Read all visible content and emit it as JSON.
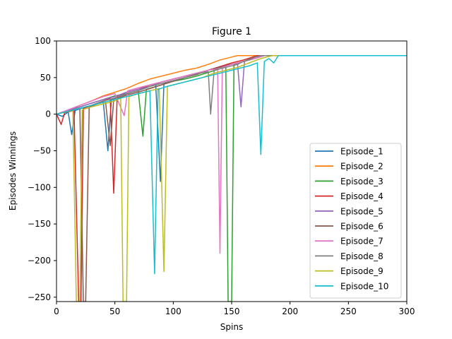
{
  "chart_data": {
    "type": "line",
    "title": "Figure 1",
    "xlabel": "Spins",
    "ylabel": "Episodes Winnings",
    "xlim": [
      0,
      300
    ],
    "ylim": [
      -256,
      100
    ],
    "xticks": [
      0,
      50,
      100,
      150,
      200,
      250,
      300
    ],
    "yticks": [
      -250,
      -200,
      -150,
      -100,
      -50,
      0,
      50,
      100
    ],
    "grid": false,
    "legend": "lower-right",
    "series": [
      {
        "name": "Episode_1",
        "color": "#1f77b4",
        "points": [
          [
            0,
            0
          ],
          [
            5,
            -3
          ],
          [
            10,
            3
          ],
          [
            13,
            -28
          ],
          [
            16,
            5
          ],
          [
            25,
            10
          ],
          [
            30,
            12
          ],
          [
            35,
            15
          ],
          [
            40,
            18
          ],
          [
            44,
            -50
          ],
          [
            47,
            20
          ],
          [
            55,
            25
          ],
          [
            65,
            30
          ],
          [
            70,
            32
          ],
          [
            75,
            35
          ],
          [
            80,
            38
          ],
          [
            85,
            40
          ],
          [
            89,
            -92
          ],
          [
            92,
            42
          ],
          [
            100,
            45
          ],
          [
            110,
            50
          ],
          [
            120,
            55
          ],
          [
            130,
            60
          ],
          [
            140,
            65
          ],
          [
            150,
            68
          ],
          [
            155,
            70
          ],
          [
            160,
            72
          ],
          [
            165,
            75
          ],
          [
            170,
            78
          ],
          [
            175,
            80
          ],
          [
            300,
            80
          ]
        ]
      },
      {
        "name": "Episode_2",
        "color": "#ff7f0e",
        "points": [
          [
            0,
            0
          ],
          [
            10,
            5
          ],
          [
            20,
            12
          ],
          [
            30,
            18
          ],
          [
            40,
            25
          ],
          [
            50,
            30
          ],
          [
            60,
            35
          ],
          [
            70,
            42
          ],
          [
            80,
            48
          ],
          [
            90,
            52
          ],
          [
            100,
            56
          ],
          [
            110,
            60
          ],
          [
            120,
            63
          ],
          [
            130,
            68
          ],
          [
            140,
            74
          ],
          [
            150,
            78
          ],
          [
            155,
            80
          ],
          [
            300,
            80
          ]
        ]
      },
      {
        "name": "Episode_3",
        "color": "#2ca02c",
        "points": [
          [
            0,
            0
          ],
          [
            10,
            5
          ],
          [
            20,
            10
          ],
          [
            30,
            15
          ],
          [
            40,
            20
          ],
          [
            50,
            25
          ],
          [
            60,
            28
          ],
          [
            70,
            32
          ],
          [
            74,
            -30
          ],
          [
            77,
            34
          ],
          [
            90,
            40
          ],
          [
            100,
            45
          ],
          [
            110,
            48
          ],
          [
            120,
            52
          ],
          [
            130,
            57
          ],
          [
            140,
            62
          ],
          [
            145,
            65
          ],
          [
            147,
            -256
          ],
          [
            150,
            -256
          ],
          [
            152,
            68
          ],
          [
            160,
            72
          ],
          [
            165,
            75
          ],
          [
            170,
            78
          ],
          [
            175,
            80
          ],
          [
            300,
            80
          ]
        ]
      },
      {
        "name": "Episode_4",
        "color": "#d62728",
        "points": [
          [
            0,
            0
          ],
          [
            4,
            -14
          ],
          [
            7,
            2
          ],
          [
            15,
            5
          ],
          [
            19,
            -256
          ],
          [
            21,
            -256
          ],
          [
            23,
            8
          ],
          [
            30,
            12
          ],
          [
            40,
            18
          ],
          [
            46,
            22
          ],
          [
            49,
            -108
          ],
          [
            52,
            25
          ],
          [
            60,
            30
          ],
          [
            70,
            34
          ],
          [
            80,
            40
          ],
          [
            90,
            44
          ],
          [
            100,
            48
          ],
          [
            110,
            52
          ],
          [
            120,
            56
          ],
          [
            130,
            60
          ],
          [
            140,
            65
          ],
          [
            150,
            70
          ],
          [
            160,
            74
          ],
          [
            168,
            78
          ],
          [
            172,
            80
          ],
          [
            300,
            80
          ]
        ]
      },
      {
        "name": "Episode_5",
        "color": "#9467bd",
        "points": [
          [
            0,
            0
          ],
          [
            10,
            5
          ],
          [
            20,
            10
          ],
          [
            30,
            15
          ],
          [
            40,
            20
          ],
          [
            50,
            24
          ],
          [
            60,
            30
          ],
          [
            70,
            34
          ],
          [
            80,
            38
          ],
          [
            90,
            44
          ],
          [
            100,
            48
          ],
          [
            110,
            52
          ],
          [
            120,
            56
          ],
          [
            130,
            60
          ],
          [
            140,
            64
          ],
          [
            150,
            68
          ],
          [
            155,
            70
          ],
          [
            158,
            10
          ],
          [
            161,
            72
          ],
          [
            170,
            78
          ],
          [
            175,
            80
          ],
          [
            300,
            80
          ]
        ]
      },
      {
        "name": "Episode_6",
        "color": "#8c564b",
        "points": [
          [
            0,
            0
          ],
          [
            10,
            4
          ],
          [
            20,
            8
          ],
          [
            23,
            -256
          ],
          [
            25,
            -256
          ],
          [
            28,
            10
          ],
          [
            35,
            14
          ],
          [
            42,
            17
          ],
          [
            46,
            -43
          ],
          [
            49,
            20
          ],
          [
            60,
            26
          ],
          [
            70,
            30
          ],
          [
            80,
            35
          ],
          [
            90,
            40
          ],
          [
            100,
            45
          ],
          [
            110,
            50
          ],
          [
            120,
            54
          ],
          [
            130,
            60
          ],
          [
            140,
            64
          ],
          [
            150,
            68
          ],
          [
            160,
            72
          ],
          [
            170,
            76
          ],
          [
            178,
            80
          ],
          [
            300,
            80
          ]
        ]
      },
      {
        "name": "Episode_7",
        "color": "#e377c2",
        "points": [
          [
            0,
            0
          ],
          [
            10,
            6
          ],
          [
            20,
            12
          ],
          [
            30,
            18
          ],
          [
            40,
            24
          ],
          [
            50,
            28
          ],
          [
            58,
            -2
          ],
          [
            61,
            32
          ],
          [
            70,
            36
          ],
          [
            80,
            40
          ],
          [
            90,
            44
          ],
          [
            100,
            48
          ],
          [
            110,
            52
          ],
          [
            120,
            56
          ],
          [
            130,
            60
          ],
          [
            138,
            62
          ],
          [
            140,
            -190
          ],
          [
            142,
            64
          ],
          [
            150,
            68
          ],
          [
            160,
            72
          ],
          [
            170,
            76
          ],
          [
            178,
            80
          ],
          [
            300,
            80
          ]
        ]
      },
      {
        "name": "Episode_8",
        "color": "#7f7f7f",
        "points": [
          [
            0,
            0
          ],
          [
            10,
            4
          ],
          [
            20,
            8
          ],
          [
            30,
            12
          ],
          [
            40,
            18
          ],
          [
            50,
            22
          ],
          [
            60,
            28
          ],
          [
            70,
            32
          ],
          [
            80,
            38
          ],
          [
            90,
            42
          ],
          [
            100,
            46
          ],
          [
            110,
            50
          ],
          [
            120,
            55
          ],
          [
            130,
            58
          ],
          [
            132,
            0
          ],
          [
            135,
            60
          ],
          [
            145,
            64
          ],
          [
            155,
            68
          ],
          [
            160,
            72
          ],
          [
            165,
            74
          ],
          [
            170,
            78
          ],
          [
            175,
            80
          ],
          [
            300,
            80
          ]
        ]
      },
      {
        "name": "Episode_9",
        "color": "#bcbd22",
        "points": [
          [
            0,
            0
          ],
          [
            8,
            3
          ],
          [
            14,
            5
          ],
          [
            17,
            -256
          ],
          [
            20,
            -256
          ],
          [
            22,
            6
          ],
          [
            30,
            10
          ],
          [
            40,
            14
          ],
          [
            50,
            18
          ],
          [
            55,
            22
          ],
          [
            57,
            -256
          ],
          [
            60,
            -256
          ],
          [
            62,
            24
          ],
          [
            70,
            28
          ],
          [
            80,
            32
          ],
          [
            88,
            35
          ],
          [
            92,
            -215
          ],
          [
            95,
            38
          ],
          [
            105,
            42
          ],
          [
            115,
            46
          ],
          [
            125,
            50
          ],
          [
            135,
            56
          ],
          [
            145,
            60
          ],
          [
            155,
            64
          ],
          [
            165,
            70
          ],
          [
            175,
            76
          ],
          [
            180,
            78
          ],
          [
            185,
            80
          ],
          [
            300,
            80
          ]
        ]
      },
      {
        "name": "Episode_10",
        "color": "#17becf",
        "points": [
          [
            0,
            0
          ],
          [
            10,
            4
          ],
          [
            20,
            8
          ],
          [
            30,
            12
          ],
          [
            40,
            16
          ],
          [
            50,
            20
          ],
          [
            60,
            24
          ],
          [
            70,
            28
          ],
          [
            80,
            32
          ],
          [
            84,
            -218
          ],
          [
            87,
            34
          ],
          [
            95,
            38
          ],
          [
            105,
            42
          ],
          [
            115,
            46
          ],
          [
            125,
            50
          ],
          [
            135,
            54
          ],
          [
            145,
            58
          ],
          [
            155,
            62
          ],
          [
            165,
            66
          ],
          [
            172,
            70
          ],
          [
            175,
            -55
          ],
          [
            178,
            72
          ],
          [
            182,
            76
          ],
          [
            186,
            70
          ],
          [
            190,
            80
          ],
          [
            300,
            80
          ]
        ]
      }
    ]
  }
}
